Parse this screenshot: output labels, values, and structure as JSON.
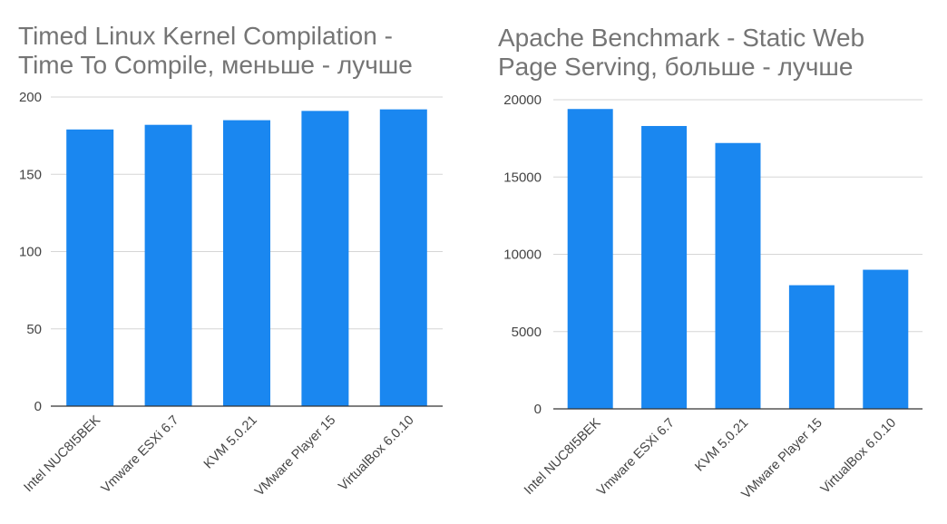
{
  "chart_data": [
    {
      "type": "bar",
      "title_lines": [
        "Timed Linux Kernel Compilation -",
        "Time To Compile, меньше - лучше"
      ],
      "categories": [
        "Intel NUC8I5BEK",
        "Vmware ESXi 6.7",
        "KVM 5.0.21",
        "VMware Player 15",
        "VirtualBox 6.0.10"
      ],
      "values": [
        179,
        182,
        185,
        191,
        192
      ],
      "yticks": [
        "0",
        "50",
        "100",
        "150",
        "200"
      ],
      "ylim": [
        0,
        200
      ],
      "grid": true,
      "color": "#1a87f0"
    },
    {
      "type": "bar",
      "title_lines": [
        "Apache Benchmark - Static Web",
        "Page Serving, больше - лучше"
      ],
      "categories": [
        "Intel NUC8I5BEK",
        "Vmware ESXi 6.7",
        "KVM 5.0.21",
        "VMware Player 15",
        "VirtualBox 6.0.10"
      ],
      "values": [
        19400,
        18300,
        17200,
        8000,
        9000
      ],
      "yticks": [
        "0",
        "5000",
        "10000",
        "15000",
        "20000"
      ],
      "ylim": [
        0,
        20000
      ],
      "grid": true,
      "color": "#1a87f0"
    }
  ]
}
